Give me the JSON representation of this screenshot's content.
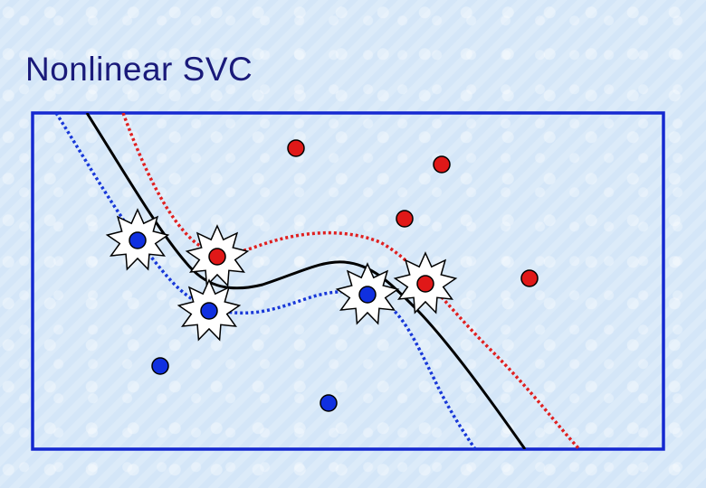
{
  "title": "Nonlinear SVC",
  "colors": {
    "frame": "#1428d0",
    "class_positive": "#e01818",
    "class_negative": "#1030e0",
    "decision_boundary": "#000000",
    "margin_positive": "#e02020",
    "margin_negative": "#1838d8",
    "support_vector_marker": "#ffffff"
  },
  "points": [
    {
      "class": "positive",
      "support_vector": false
    },
    {
      "class": "positive",
      "support_vector": false
    },
    {
      "class": "positive",
      "support_vector": false
    },
    {
      "class": "positive",
      "support_vector": false
    },
    {
      "class": "positive",
      "support_vector": true
    },
    {
      "class": "positive",
      "support_vector": true
    },
    {
      "class": "negative",
      "support_vector": true
    },
    {
      "class": "negative",
      "support_vector": true
    },
    {
      "class": "negative",
      "support_vector": true
    },
    {
      "class": "negative",
      "support_vector": false
    },
    {
      "class": "negative",
      "support_vector": false
    }
  ]
}
